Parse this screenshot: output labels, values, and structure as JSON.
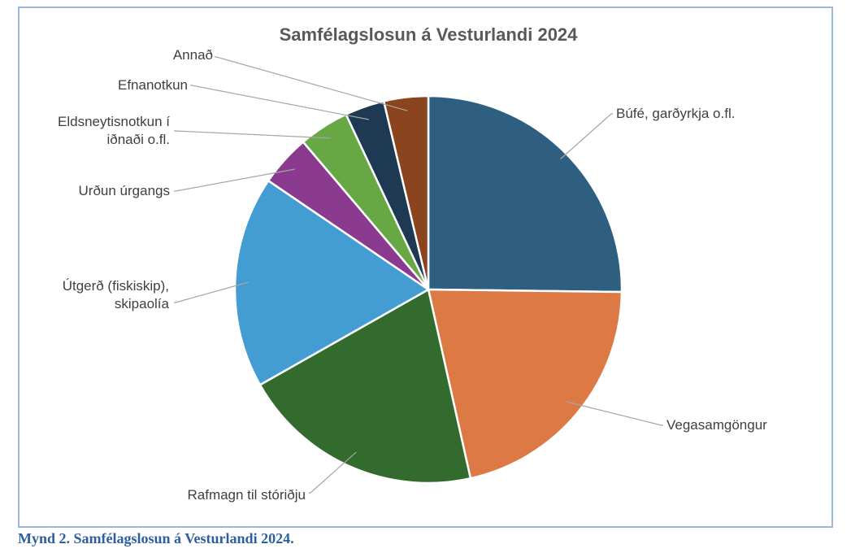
{
  "caption": "Mynd 2. Samfélagslosun á Vesturlandi 2024.",
  "chart_data": {
    "type": "pie",
    "title": "Samfélagslosun á Vesturlandi 2024",
    "legend": "none",
    "slices": [
      {
        "label": [
          "Búfé, garðyrkja o.fl."
        ],
        "value": 25.2,
        "color": "#2e5f80"
      },
      {
        "label": [
          "Vegasamgöngur"
        ],
        "value": 21.3,
        "color": "#dc7944"
      },
      {
        "label": [
          "Rafmagn til stóriðju"
        ],
        "value": 20.3,
        "color": "#336b2e"
      },
      {
        "label": [
          "Útgerð (fiskiskip),",
          "skipaolía"
        ],
        "value": 17.7,
        "color": "#449dd2"
      },
      {
        "label": [
          "Urðun úrgangs"
        ],
        "value": 4.3,
        "color": "#8b3b8f"
      },
      {
        "label": [
          "Eldsneytisnotkun í",
          "iðnaði o.fl."
        ],
        "value": 4.2,
        "color": "#67a844"
      },
      {
        "label": [
          "Efnanotkun"
        ],
        "value": 3.3,
        "color": "#1d3a52"
      },
      {
        "label": [
          "Annað"
        ],
        "value": 3.7,
        "color": "#8b4420"
      }
    ]
  }
}
